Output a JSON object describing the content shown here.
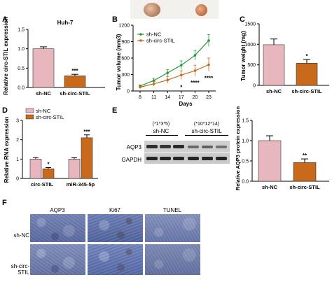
{
  "panels": {
    "A": "A",
    "B": "B",
    "C": "C",
    "D": "D",
    "E": "E",
    "F": "F"
  },
  "colors": {
    "nc_fill": "#e8b7bd",
    "circ_fill": "#c8691c",
    "nc_line": "#2a9a3a",
    "circ_line": "#c8691c"
  },
  "chart_data": [
    {
      "id": "A",
      "type": "bar",
      "title": "Huh-7",
      "ylabel": "Relative circ-STIL expression",
      "categories": [
        "sh-NC",
        "sh-circ-STIL"
      ],
      "values": [
        1.0,
        0.3
      ],
      "errors": [
        0.05,
        0.04
      ],
      "ylim": [
        0,
        1.5
      ],
      "yticks": [
        "0.0",
        "0.5",
        "1.0",
        "1.5"
      ],
      "annotations": [
        "",
        "***"
      ]
    },
    {
      "id": "B",
      "type": "line",
      "xlabel": "Days",
      "ylabel": "Tumor volume (mm3)",
      "x": [
        8,
        11,
        14,
        17,
        20,
        23
      ],
      "xticks": [
        "8",
        "11",
        "14",
        "17",
        "20",
        "23"
      ],
      "yticks": [
        "0",
        "300",
        "600",
        "900",
        "1200"
      ],
      "ylim": [
        0,
        1200
      ],
      "legend": "top-left",
      "series": [
        {
          "name": "sh-NC",
          "values": [
            90,
            190,
            330,
            470,
            650,
            920
          ],
          "errors": [
            20,
            40,
            60,
            80,
            90,
            110
          ]
        },
        {
          "name": "sh-circ-STIL",
          "values": [
            70,
            130,
            200,
            290,
            370,
            480
          ],
          "errors": [
            20,
            40,
            60,
            80,
            100,
            120
          ]
        }
      ],
      "annotations": [
        {
          "x": 17,
          "text": "*"
        },
        {
          "x": 20,
          "text": "****"
        },
        {
          "x": 23,
          "text": "****"
        }
      ]
    },
    {
      "id": "C",
      "type": "bar",
      "ylabel": "Tumor weight (mg)",
      "categories": [
        "sh-NC",
        "sh-circ-STIL"
      ],
      "values": [
        990,
        540
      ],
      "errors": [
        140,
        90
      ],
      "ylim": [
        0,
        1500
      ],
      "yticks": [
        "0",
        "500",
        "1000",
        "1500"
      ],
      "annotations": [
        "",
        "*"
      ]
    },
    {
      "id": "D",
      "type": "bar",
      "ylabel": "Relative RNA expression",
      "categories": [
        "circ-STIL",
        "miR-345-5p"
      ],
      "series": [
        {
          "name": "sh-NC",
          "values": [
            1.0,
            1.0
          ],
          "errors": [
            0.08,
            0.07
          ]
        },
        {
          "name": "sh-circ-STIL",
          "values": [
            0.5,
            2.1
          ],
          "errors": [
            0.06,
            0.15
          ]
        }
      ],
      "ylim": [
        0,
        3
      ],
      "yticks": [
        "0",
        "1",
        "2",
        "3"
      ],
      "legend": "top-left",
      "annotations": [
        "*",
        "***"
      ]
    },
    {
      "id": "E",
      "type": "bar",
      "ylabel": "Relative AQP3 protein expression",
      "categories": [
        "sh-NC",
        "sh-circ-STIL"
      ],
      "values": [
        1.0,
        0.46
      ],
      "errors": [
        0.12,
        0.09
      ],
      "ylim": [
        0,
        1.5
      ],
      "yticks": [
        "0.0",
        "0.5",
        "1.0",
        "1.5"
      ],
      "annotations": [
        "",
        "**"
      ]
    }
  ],
  "blot": {
    "group1_ids": "(*1*3*5)",
    "group1_name": "sh-NC",
    "group2_ids": "(*10*12*14)",
    "group2_name": "sh-circ-STIL",
    "rows": [
      "AQP3",
      "GAPDH"
    ]
  },
  "ihc": {
    "columns": [
      "AQP3",
      "Ki67",
      "TUNEL"
    ],
    "rows": [
      "sh-NC",
      "sh-circ-STIL"
    ]
  }
}
